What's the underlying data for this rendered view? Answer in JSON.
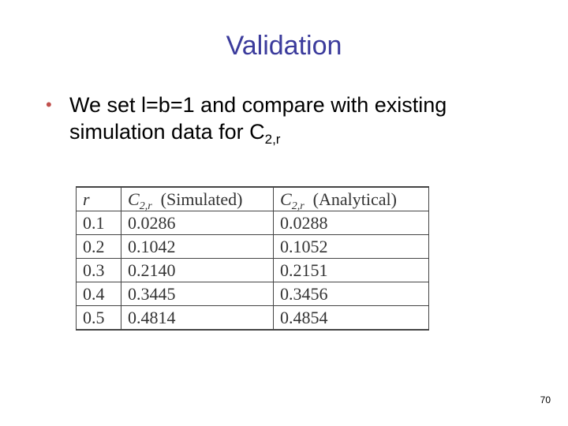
{
  "slide": {
    "title": "Validation",
    "bullet": {
      "symbol": "•",
      "line1": "We set l=b=1 and compare with existing",
      "line2_prefix": "simulation data for C",
      "line2_subscript": "2,r"
    },
    "page_number": "70"
  },
  "table": {
    "headers": {
      "r": "r",
      "sim_symbol": "C",
      "sim_subscript": "2,r",
      "sim_label": "(Simulated)",
      "ana_symbol": "C",
      "ana_subscript": "2,r",
      "ana_label": "(Analytical)"
    },
    "rows": [
      {
        "r": "0.1",
        "simulated": "0.0286",
        "analytical": "0.0288"
      },
      {
        "r": "0.2",
        "simulated": "0.1042",
        "analytical": "0.1052"
      },
      {
        "r": "0.3",
        "simulated": "0.2140",
        "analytical": "0.2151"
      },
      {
        "r": "0.4",
        "simulated": "0.3445",
        "analytical": "0.3456"
      },
      {
        "r": "0.5",
        "simulated": "0.4814",
        "analytical": "0.4854"
      }
    ]
  },
  "colors": {
    "title": "#3b3b9c",
    "bullet": "#c0504d"
  }
}
